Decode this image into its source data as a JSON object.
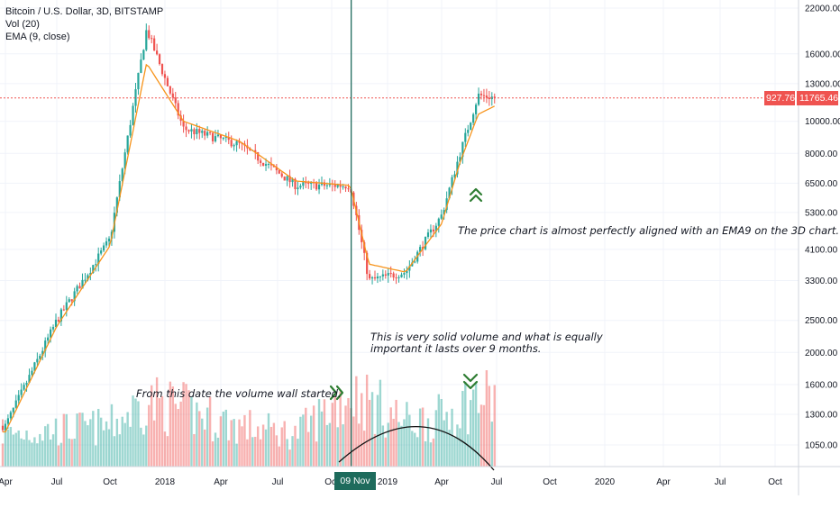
{
  "legend": {
    "symbol": "Bitcoin / U.S. Dollar, 3D, BITSTAMP",
    "volume": "Vol (20)",
    "ema": "EMA (9, close)"
  },
  "price_axis": {
    "labels": [
      "22000.00",
      "16000.00",
      "13000.00",
      "10000.00",
      "8000.00",
      "6500.00",
      "5300.00",
      "4100.00",
      "3300.00",
      "2500.00",
      "2000.00",
      "1600.00",
      "1300.00",
      "1050.00"
    ],
    "current_price": "11765.46",
    "percent_change": "927.76%"
  },
  "time_axis": {
    "labels": [
      "Apr",
      "Jul",
      "Oct",
      "2018",
      "Apr",
      "Jul",
      "Oct",
      "2019",
      "Apr",
      "Jul",
      "Oct",
      "2020",
      "Apr",
      "Jul",
      "Oct"
    ],
    "crosshair_date": "09 Nov '18"
  },
  "annotations": {
    "price_note": "The price chart is almost perfectly aligned with an EMA9 on the 3D chart.",
    "volume_note_line1": "This is very solid volume and what is equally",
    "volume_note_line2": "important it lasts over 9 months.",
    "wall_note": "From this date the volume wall started."
  },
  "colors": {
    "up": "#26a69a",
    "down": "#ef5350",
    "ema": "#f7931a",
    "crosshair": "#1e6b5c",
    "arrow": "#2e7d32",
    "price_line": "#ef5350"
  },
  "chart_data": {
    "type": "candlestick",
    "scale": "log",
    "ylim": [
      900,
      23000
    ],
    "series": [
      {
        "name": "Bitcoin / U.S. Dollar, 3D, BITSTAMP",
        "x": [
          "2017-04",
          "2017-07",
          "2017-10",
          "2017-12",
          "2018-02",
          "2018-05",
          "2018-08",
          "2018-11",
          "2018-12",
          "2019-02",
          "2019-04",
          "2019-05",
          "2019-06",
          "2019-07"
        ],
        "values": [
          1200,
          2500,
          4400,
          19000,
          9500,
          8500,
          6400,
          6400,
          3300,
          3500,
          5200,
          8000,
          12000,
          11765
        ]
      },
      {
        "name": "EMA (9, close)",
        "x": [
          "2017-04",
          "2017-07",
          "2017-10",
          "2017-12",
          "2018-02",
          "2018-05",
          "2018-08",
          "2018-11",
          "2018-12",
          "2019-02",
          "2019-04",
          "2019-05",
          "2019-06",
          "2019-07"
        ],
        "values": [
          1150,
          2400,
          4200,
          15000,
          10000,
          8700,
          6600,
          6400,
          3700,
          3500,
          4900,
          7500,
          10500,
          11200
        ]
      },
      {
        "name": "Vol (20)",
        "x": [
          "2017-04",
          "2017-07",
          "2017-10",
          "2017-12",
          "2018-02",
          "2018-05",
          "2018-08",
          "2018-11",
          "2018-12",
          "2019-02",
          "2019-04",
          "2019-05",
          "2019-06",
          "2019-07"
        ],
        "values": [
          40,
          45,
          50,
          80,
          70,
          50,
          40,
          90,
          80,
          55,
          60,
          75,
          85,
          80
        ]
      }
    ]
  }
}
